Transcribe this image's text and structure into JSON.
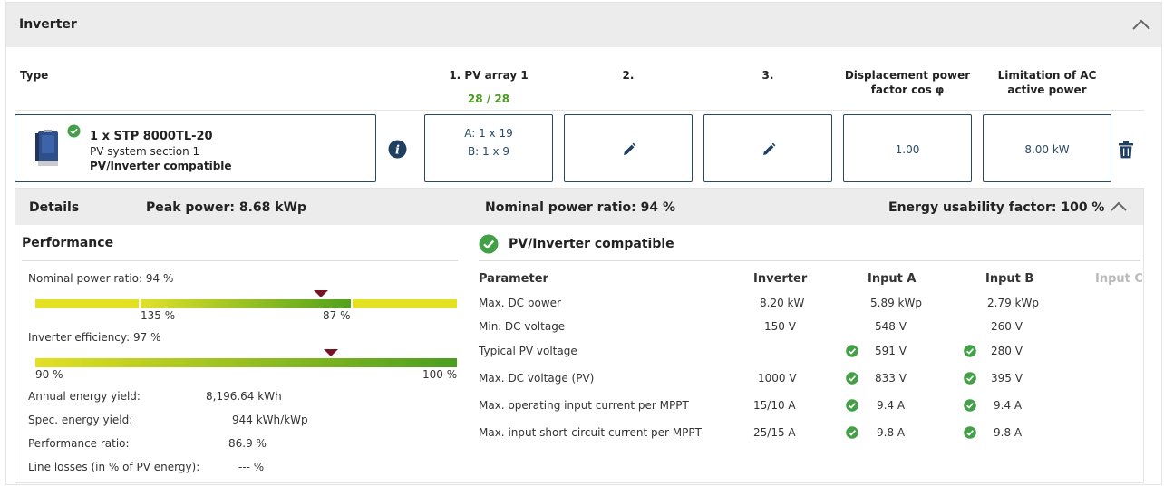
{
  "panel": {
    "title": "Inverter"
  },
  "columns": {
    "type": "Type",
    "pv1": "1. PV array 1",
    "pv1_count": "28 / 28",
    "pv2": "2.",
    "pv3": "3.",
    "cosphi": "Displacement power factor cos φ",
    "limit": "Limitation of AC active power"
  },
  "inverter": {
    "name": "1 x STP 8000TL-20",
    "section": "PV system section 1",
    "compat": "PV/Inverter compatible"
  },
  "config": {
    "pv1_a": "A: 1 x 19",
    "pv1_b": "B: 1 x 9",
    "cosphi_value": "1.00",
    "limit_value": "8.00 kW"
  },
  "details": {
    "label": "Details",
    "peak_power": "Peak power: 8.68 kWp",
    "nominal_ratio": "Nominal power ratio: 94 %",
    "energy_usability": "Energy usability factor: 100 %"
  },
  "performance": {
    "title": "Performance",
    "nominal_label": "Nominal power ratio: 94 %",
    "nominal_left_tick": "135 %",
    "nominal_right_tick": "87 %",
    "efficiency_label": "Inverter efficiency: 97 %",
    "eff_min": "90 %",
    "eff_max": "100 %",
    "rows": [
      {
        "label": "Annual energy yield:",
        "value": "8,196.64 kWh"
      },
      {
        "label": "Spec. energy yield:",
        "value": "944 kWh/kWp"
      },
      {
        "label": "Performance ratio:",
        "value": "86.9 %"
      },
      {
        "label": "Line losses (in % of PV energy):",
        "value": "--- %"
      }
    ],
    "nominal_marker_fraction": 0.678,
    "efficiency_marker_fraction": 0.7
  },
  "compat": {
    "title": "PV/Inverter compatible",
    "headers": [
      "Parameter",
      "Inverter",
      "Input A",
      "Input B",
      "Input C"
    ],
    "rows": [
      {
        "param": "Max. DC power",
        "inverter": "8.20 kW",
        "a": "5.89 kWp",
        "b": "2.79 kWp",
        "ok": false
      },
      {
        "param": "Min. DC voltage",
        "inverter": "150 V",
        "a": "548 V",
        "b": "260 V",
        "ok": false
      },
      {
        "param": "Typical PV voltage",
        "inverter": "",
        "a": "591 V",
        "b": "280 V",
        "ok": true
      },
      {
        "param": "Max. DC voltage (PV)",
        "inverter": "1000 V",
        "a": "833 V",
        "b": "395 V",
        "ok": true
      },
      {
        "param": "Max. operating input current per MPPT",
        "inverter": "15/10 A",
        "a": "9.4 A",
        "b": "9.4 A",
        "ok": true
      },
      {
        "param": "Max. input short-circuit current per MPPT",
        "inverter": "25/15 A",
        "a": "9.8 A",
        "b": "9.8 A",
        "ok": true
      }
    ]
  },
  "colors": {
    "accent": "#2a4a63",
    "ok": "#43a047",
    "count": "#4a9a1e",
    "marker": "#7a1225"
  }
}
